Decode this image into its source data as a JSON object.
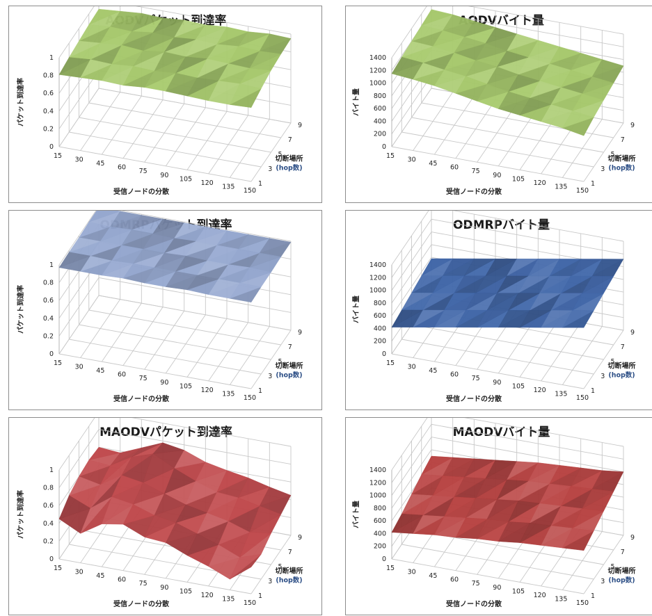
{
  "chart_data": [
    {
      "id": "c0",
      "type": "surface3d",
      "title": "AODVパケット到達率",
      "zlabel": "パケット到達率",
      "xlabel": "受信ノードの分散",
      "ylabel_line1": "切断場所",
      "ylabel_line2": "(hop数)",
      "x": [
        "15",
        "30",
        "45",
        "60",
        "75",
        "90",
        "105",
        "120",
        "135",
        "150"
      ],
      "y": [
        "1",
        "3",
        "5",
        "7",
        "9"
      ],
      "zticks": [
        "0",
        "0.2",
        "0.4",
        "0.6",
        "0.8",
        "1"
      ],
      "zlim": [
        0,
        1
      ],
      "color": "#a6c96a",
      "values": [
        [
          0.81,
          0.82,
          0.83,
          0.82,
          0.84,
          0.84,
          0.83,
          0.82,
          0.82,
          0.83
        ],
        [
          0.84,
          0.86,
          0.85,
          0.87,
          0.86,
          0.88,
          0.87,
          0.88,
          0.89,
          0.88
        ],
        [
          0.86,
          0.88,
          0.9,
          0.88,
          0.91,
          0.9,
          0.92,
          0.91,
          0.9,
          0.92
        ],
        [
          0.88,
          0.9,
          0.89,
          0.92,
          0.91,
          0.93,
          0.92,
          0.94,
          0.93,
          0.94
        ],
        [
          0.89,
          0.91,
          0.93,
          0.92,
          0.94,
          0.93,
          0.95,
          0.94,
          0.96,
          0.95
        ]
      ]
    },
    {
      "id": "c1",
      "type": "surface3d",
      "title": "AODVバイト量",
      "zlabel": "バイト量",
      "xlabel": "受信ノードの分散",
      "ylabel_line1": "切断場所",
      "ylabel_line2": "(hop数)",
      "x": [
        "15",
        "30",
        "45",
        "60",
        "75",
        "90",
        "105",
        "120",
        "135",
        "150"
      ],
      "y": [
        "1",
        "3",
        "5",
        "7",
        "9"
      ],
      "zticks": [
        "0",
        "200",
        "400",
        "600",
        "800",
        "1000",
        "1200",
        "1400"
      ],
      "zlim": [
        0,
        1400
      ],
      "color": "#a6c96a",
      "values": [
        [
          1150,
          1120,
          1080,
          1020,
          960,
          900,
          860,
          820,
          780,
          720
        ],
        [
          1180,
          1150,
          1100,
          1060,
          1000,
          940,
          900,
          860,
          820,
          780
        ],
        [
          1200,
          1180,
          1140,
          1080,
          1040,
          980,
          940,
          900,
          860,
          820
        ],
        [
          1220,
          1200,
          1160,
          1120,
          1060,
          1020,
          980,
          940,
          900,
          860
        ],
        [
          1240,
          1220,
          1180,
          1140,
          1100,
          1060,
          1020,
          980,
          940,
          900
        ]
      ]
    },
    {
      "id": "c2",
      "type": "surface3d",
      "title": "ODMRPパケット到達率",
      "zlabel": "パケット到達率",
      "xlabel": "受信ノードの分散",
      "ylabel_line1": "切断場所",
      "ylabel_line2": "(hop数)",
      "x": [
        "15",
        "30",
        "45",
        "60",
        "75",
        "90",
        "105",
        "120",
        "135",
        "150"
      ],
      "y": [
        "1",
        "3",
        "5",
        "7",
        "9"
      ],
      "zticks": [
        "0",
        "0.2",
        "0.4",
        "0.6",
        "0.8",
        "1"
      ],
      "zlim": [
        0,
        1
      ],
      "color": "#93a6cf",
      "values": [
        [
          0.97,
          0.97,
          0.97,
          0.98,
          0.97,
          0.97,
          0.98,
          0.97,
          0.97,
          0.97
        ],
        [
          0.98,
          0.98,
          0.97,
          0.98,
          0.98,
          0.98,
          0.98,
          0.98,
          0.98,
          0.98
        ],
        [
          0.98,
          0.98,
          0.98,
          0.98,
          0.98,
          0.99,
          0.98,
          0.98,
          0.99,
          0.98
        ],
        [
          0.99,
          0.98,
          0.99,
          0.99,
          0.98,
          0.99,
          0.99,
          0.99,
          0.99,
          0.99
        ],
        [
          0.99,
          0.99,
          0.99,
          0.99,
          0.99,
          0.99,
          0.99,
          0.99,
          0.99,
          0.99
        ]
      ]
    },
    {
      "id": "c3",
      "type": "surface3d",
      "title": "ODMRPバイト量",
      "zlabel": "バイト量",
      "xlabel": "受信ノードの分散",
      "ylabel_line1": "切断場所",
      "ylabel_line2": "(hop数)",
      "x": [
        "15",
        "30",
        "45",
        "60",
        "75",
        "90",
        "105",
        "120",
        "135",
        "150"
      ],
      "y": [
        "1",
        "3",
        "5",
        "7",
        "9"
      ],
      "zticks": [
        "0",
        "200",
        "400",
        "600",
        "800",
        "1000",
        "1200",
        "1400"
      ],
      "zlim": [
        0,
        1400
      ],
      "color": "#3d64a8",
      "values": [
        [
          420,
          480,
          540,
          600,
          660,
          720,
          780,
          840,
          900,
          960
        ],
        [
          460,
          520,
          580,
          640,
          700,
          760,
          820,
          880,
          940,
          1000
        ],
        [
          500,
          560,
          620,
          680,
          740,
          800,
          860,
          920,
          980,
          1040
        ],
        [
          540,
          600,
          660,
          720,
          780,
          840,
          900,
          960,
          1020,
          1080
        ],
        [
          580,
          640,
          700,
          760,
          820,
          880,
          940,
          1000,
          1060,
          1120
        ]
      ]
    },
    {
      "id": "c4",
      "type": "surface3d",
      "title": "MAODVパケット到達率",
      "zlabel": "パケット到達率",
      "xlabel": "受信ノードの分散",
      "ylabel_line1": "切断場所",
      "ylabel_line2": "(hop数)",
      "x": [
        "15",
        "30",
        "45",
        "60",
        "75",
        "90",
        "105",
        "120",
        "135",
        "150"
      ],
      "y": [
        "1",
        "3",
        "5",
        "7",
        "9"
      ],
      "zticks": [
        "0",
        "0.2",
        "0.4",
        "0.6",
        "0.8",
        "1"
      ],
      "zlim": [
        0,
        1
      ],
      "color": "#c0474a",
      "values": [
        [
          0.45,
          0.33,
          0.48,
          0.52,
          0.42,
          0.4,
          0.3,
          0.22,
          0.12,
          0.3
        ],
        [
          0.55,
          0.45,
          0.62,
          0.58,
          0.5,
          0.46,
          0.38,
          0.3,
          0.2,
          0.28
        ],
        [
          0.6,
          0.55,
          0.7,
          0.66,
          0.58,
          0.5,
          0.45,
          0.4,
          0.32,
          0.35
        ],
        [
          0.62,
          0.6,
          0.74,
          0.82,
          0.7,
          0.6,
          0.52,
          0.5,
          0.45,
          0.4
        ],
        [
          0.6,
          0.58,
          0.68,
          0.78,
          0.74,
          0.65,
          0.6,
          0.56,
          0.5,
          0.45
        ]
      ]
    },
    {
      "id": "c5",
      "type": "surface3d",
      "title": "MAODVバイト量",
      "zlabel": "バイト量",
      "xlabel": "受信ノードの分散",
      "ylabel_line1": "切断場所",
      "ylabel_line2": "(hop数)",
      "x": [
        "15",
        "30",
        "45",
        "60",
        "75",
        "90",
        "105",
        "120",
        "135",
        "150"
      ],
      "y": [
        "1",
        "3",
        "5",
        "7",
        "9"
      ],
      "zticks": [
        "0",
        "200",
        "400",
        "600",
        "800",
        "1000",
        "1200",
        "1400"
      ],
      "zlim": [
        0,
        1400
      ],
      "color": "#b8403f",
      "values": [
        [
          420,
          460,
          500,
          520,
          560,
          580,
          620,
          640,
          660,
          680
        ],
        [
          480,
          520,
          560,
          600,
          640,
          660,
          700,
          720,
          740,
          760
        ],
        [
          560,
          600,
          640,
          680,
          720,
          760,
          780,
          800,
          820,
          840
        ],
        [
          640,
          680,
          720,
          760,
          800,
          840,
          860,
          880,
          900,
          920
        ],
        [
          700,
          740,
          780,
          820,
          860,
          900,
          920,
          940,
          960,
          1000
        ]
      ]
    }
  ]
}
